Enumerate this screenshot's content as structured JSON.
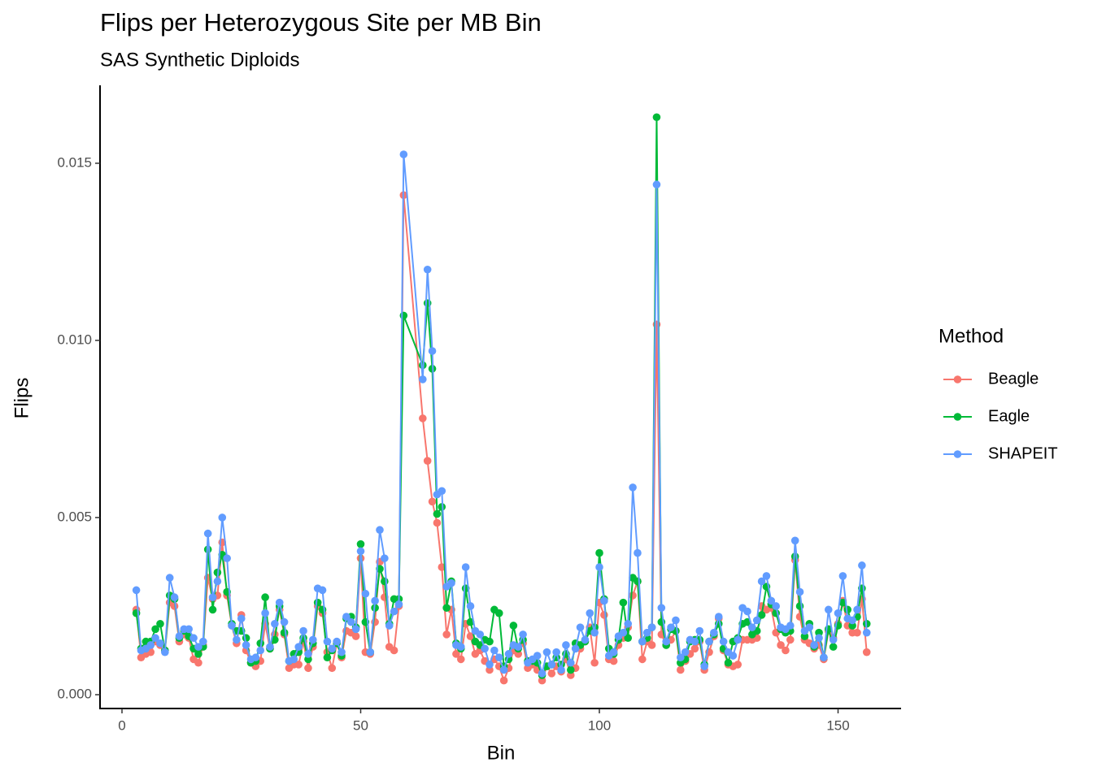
{
  "chart_data": {
    "type": "line",
    "title": "Flips per Heterozygous Site per MB Bin",
    "subtitle": "SAS Synthetic Diploids",
    "x_label": "Bin",
    "y_label": "Flips",
    "legend_title": "Method",
    "legend": "right",
    "xlim": [
      -4.6,
      163.2
    ],
    "ylim": [
      -0.00039,
      0.0172
    ],
    "xticks": [
      0,
      50,
      100,
      150
    ],
    "yticks": [
      {
        "value": 0,
        "label": "0.000"
      },
      0.005,
      {
        "value": 0.01,
        "label": "0.010"
      },
      0.015
    ],
    "x": [
      3,
      4,
      5,
      6,
      7,
      8,
      9,
      10,
      11,
      12,
      13,
      14,
      15,
      16,
      17,
      18,
      19,
      20,
      21,
      22,
      23,
      24,
      25,
      26,
      27,
      28,
      29,
      30,
      31,
      32,
      33,
      34,
      35,
      36,
      37,
      38,
      39,
      40,
      41,
      42,
      43,
      44,
      45,
      46,
      47,
      48,
      49,
      50,
      51,
      52,
      53,
      54,
      55,
      56,
      57,
      58,
      59,
      63,
      64,
      65,
      66,
      67,
      68,
      69,
      70,
      71,
      72,
      73,
      74,
      75,
      76,
      77,
      78,
      79,
      80,
      81,
      82,
      83,
      84,
      85,
      86,
      87,
      88,
      89,
      90,
      91,
      92,
      93,
      94,
      95,
      96,
      97,
      98,
      99,
      100,
      101,
      102,
      103,
      104,
      105,
      106,
      107,
      108,
      109,
      110,
      111,
      112,
      113,
      114,
      115,
      116,
      117,
      118,
      119,
      120,
      121,
      122,
      123,
      124,
      125,
      126,
      127,
      128,
      129,
      130,
      131,
      132,
      133,
      134,
      135,
      136,
      137,
      138,
      139,
      140,
      141,
      142,
      143,
      144,
      145,
      146,
      147,
      148,
      149,
      150,
      151,
      152,
      153,
      154,
      155,
      156
    ],
    "series": [
      {
        "name": "Beagle",
        "color": "#F8766D",
        "values": [
          0.0024,
          0.00105,
          0.00115,
          0.0012,
          0.0015,
          0.0014,
          0.00125,
          0.0026,
          0.0025,
          0.0015,
          0.0017,
          0.0016,
          0.001,
          0.0009,
          0.0014,
          0.0033,
          0.0027,
          0.0028,
          0.0043,
          0.0028,
          0.00195,
          0.00145,
          0.00225,
          0.00125,
          0.0009,
          0.0008,
          0.00095,
          0.002,
          0.0013,
          0.0017,
          0.0024,
          0.0017,
          0.00075,
          0.00085,
          0.00085,
          0.0015,
          0.00075,
          0.00135,
          0.0025,
          0.0023,
          0.0012,
          0.00075,
          0.00145,
          0.00105,
          0.0018,
          0.00175,
          0.00165,
          0.00385,
          0.0012,
          0.00115,
          0.00205,
          0.00375,
          0.00275,
          0.00135,
          0.00125,
          0.0025,
          0.0141,
          0.0078,
          0.0066,
          0.00545,
          0.00485,
          0.0036,
          0.0017,
          0.0024,
          0.00115,
          0.001,
          0.002,
          0.00165,
          0.00115,
          0.00125,
          0.00095,
          0.0007,
          0.001,
          0.0008,
          0.0004,
          0.00075,
          0.00125,
          0.00115,
          0.00145,
          0.00075,
          0.00085,
          0.0007,
          0.0004,
          0.0008,
          0.0006,
          0.0008,
          0.00065,
          0.001,
          0.00055,
          0.00075,
          0.0013,
          0.0015,
          0.0019,
          0.0009,
          0.0026,
          0.00225,
          0.001,
          0.00095,
          0.0014,
          0.0016,
          0.0019,
          0.0028,
          0.0032,
          0.001,
          0.0015,
          0.0014,
          0.01045,
          0.0017,
          0.0014,
          0.00155,
          0.0018,
          0.0007,
          0.00095,
          0.00115,
          0.0013,
          0.0015,
          0.0007,
          0.0012,
          0.00165,
          0.00215,
          0.00125,
          0.00085,
          0.0008,
          0.00085,
          0.00155,
          0.00155,
          0.00155,
          0.0016,
          0.0025,
          0.0024,
          0.00245,
          0.00175,
          0.0014,
          0.00125,
          0.00155,
          0.0038,
          0.0022,
          0.00155,
          0.00145,
          0.0013,
          0.0014,
          0.001,
          0.0018,
          0.0016,
          0.002,
          0.00265,
          0.00195,
          0.00175,
          0.00175,
          0.0027,
          0.0012
        ]
      },
      {
        "name": "Eagle",
        "color": "#00BA38",
        "values": [
          0.0023,
          0.0013,
          0.0015,
          0.0015,
          0.00185,
          0.002,
          0.00125,
          0.0028,
          0.0027,
          0.0016,
          0.0018,
          0.00165,
          0.0013,
          0.00115,
          0.00135,
          0.0041,
          0.0024,
          0.00345,
          0.00395,
          0.0029,
          0.002,
          0.0018,
          0.0018,
          0.0016,
          0.0009,
          0.00095,
          0.00145,
          0.00275,
          0.0013,
          0.00155,
          0.0025,
          0.00175,
          0.00095,
          0.00115,
          0.0012,
          0.0016,
          0.001,
          0.00145,
          0.0026,
          0.0024,
          0.00105,
          0.00125,
          0.00145,
          0.0011,
          0.00215,
          0.0022,
          0.0019,
          0.00425,
          0.00205,
          0.0012,
          0.00245,
          0.00355,
          0.0032,
          0.002,
          0.0027,
          0.0027,
          0.0107,
          0.0093,
          0.01105,
          0.0092,
          0.0051,
          0.0053,
          0.00245,
          0.0032,
          0.00145,
          0.0013,
          0.003,
          0.00205,
          0.0015,
          0.0014,
          0.00155,
          0.0015,
          0.0024,
          0.0023,
          0.0008,
          0.001,
          0.00195,
          0.0013,
          0.00155,
          0.00095,
          0.00095,
          0.0009,
          0.00055,
          0.0008,
          0.00085,
          0.00105,
          0.00085,
          0.00115,
          0.0007,
          0.00145,
          0.0014,
          0.0015,
          0.0018,
          0.0019,
          0.004,
          0.0027,
          0.0013,
          0.00115,
          0.00155,
          0.0026,
          0.0016,
          0.0033,
          0.0032,
          0.0015,
          0.0016,
          0.0019,
          0.0163,
          0.00205,
          0.0014,
          0.00185,
          0.0018,
          0.0009,
          0.001,
          0.0015,
          0.00155,
          0.00155,
          0.00085,
          0.0015,
          0.0017,
          0.002,
          0.0013,
          0.0009,
          0.0015,
          0.0016,
          0.002,
          0.00205,
          0.0017,
          0.0018,
          0.00225,
          0.00305,
          0.00255,
          0.0023,
          0.00185,
          0.00175,
          0.0018,
          0.0039,
          0.0025,
          0.00165,
          0.002,
          0.00135,
          0.00175,
          0.00105,
          0.00185,
          0.00135,
          0.00195,
          0.0026,
          0.0024,
          0.00195,
          0.0022,
          0.003,
          0.002
        ]
      },
      {
        "name": "SHAPEIT",
        "color": "#619CFF",
        "values": [
          0.00295,
          0.00125,
          0.0013,
          0.0014,
          0.0016,
          0.00145,
          0.0012,
          0.0033,
          0.00275,
          0.00165,
          0.00185,
          0.00185,
          0.0016,
          0.00135,
          0.0015,
          0.00455,
          0.00275,
          0.0032,
          0.005,
          0.00385,
          0.00195,
          0.00155,
          0.00215,
          0.0014,
          0.001,
          0.00105,
          0.00125,
          0.0023,
          0.00135,
          0.002,
          0.0026,
          0.00205,
          0.00095,
          0.001,
          0.00135,
          0.0018,
          0.00115,
          0.00155,
          0.003,
          0.00295,
          0.0015,
          0.0013,
          0.0015,
          0.0012,
          0.0022,
          0.00205,
          0.00185,
          0.00405,
          0.00285,
          0.0012,
          0.00265,
          0.00465,
          0.00385,
          0.00195,
          0.00235,
          0.00255,
          0.01525,
          0.0089,
          0.012,
          0.0097,
          0.00565,
          0.00575,
          0.00305,
          0.00315,
          0.0014,
          0.00135,
          0.0036,
          0.0025,
          0.0018,
          0.0017,
          0.0013,
          0.00085,
          0.00125,
          0.00105,
          0.0007,
          0.00115,
          0.0014,
          0.00135,
          0.0017,
          0.0009,
          0.001,
          0.0011,
          0.0006,
          0.0012,
          0.00085,
          0.0012,
          0.0007,
          0.0014,
          0.0009,
          0.0013,
          0.0019,
          0.00155,
          0.0023,
          0.00175,
          0.0036,
          0.00265,
          0.0011,
          0.0012,
          0.00165,
          0.00175,
          0.002,
          0.00585,
          0.004,
          0.0015,
          0.00175,
          0.0019,
          0.0144,
          0.00245,
          0.0015,
          0.0019,
          0.0021,
          0.00105,
          0.0012,
          0.00155,
          0.0015,
          0.0018,
          0.0008,
          0.0015,
          0.00175,
          0.0022,
          0.0015,
          0.0012,
          0.0011,
          0.00155,
          0.00245,
          0.00235,
          0.0019,
          0.0021,
          0.0032,
          0.00335,
          0.00265,
          0.0025,
          0.0019,
          0.00185,
          0.00195,
          0.00435,
          0.0029,
          0.0018,
          0.0019,
          0.0014,
          0.0016,
          0.00105,
          0.0024,
          0.00155,
          0.0023,
          0.00335,
          0.00215,
          0.0021,
          0.0024,
          0.00365,
          0.00175
        ]
      }
    ]
  }
}
